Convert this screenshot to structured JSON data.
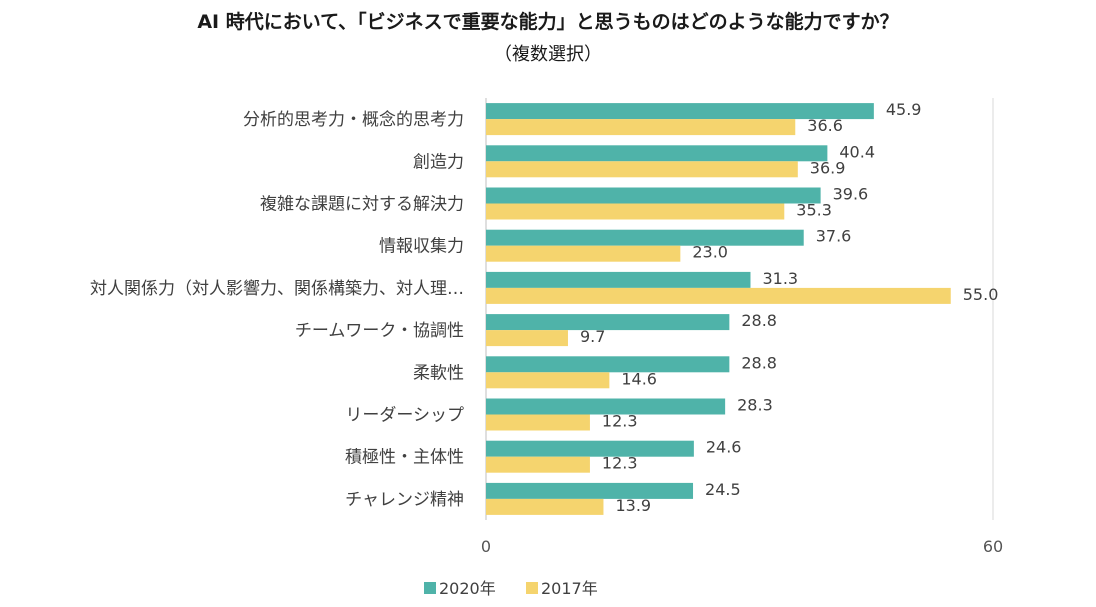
{
  "chart_data": {
    "type": "bar",
    "orientation": "horizontal",
    "title": "AI 時代において、「ビジネスで重要な能力」と思うものはどのような能力ですか？",
    "subtitle": "（複数選択）",
    "categories": [
      "分析的思考力・概念的思考力",
      "創造力",
      "複雑な課題に対する解決力",
      "情報収集力",
      "対人関係力（対人影響力、関係構築力、対人理…",
      "チームワーク・協調性",
      "柔軟性",
      "リーダーシップ",
      "積極性・主体性",
      "チャレンジ精神"
    ],
    "series": [
      {
        "name": "2020年",
        "color": "#4fb3a9",
        "values": [
          45.9,
          40.4,
          39.6,
          37.6,
          31.3,
          28.8,
          28.8,
          28.3,
          24.6,
          24.5
        ]
      },
      {
        "name": "2017年",
        "color": "#f5d46e",
        "values": [
          36.6,
          36.9,
          35.3,
          23.0,
          55.0,
          9.7,
          14.6,
          12.3,
          12.3,
          13.9
        ]
      }
    ],
    "xlim": [
      0,
      60
    ],
    "ticks": [
      "0",
      "60"
    ],
    "gridlines": [
      60
    ],
    "legend_position": "bottom"
  }
}
